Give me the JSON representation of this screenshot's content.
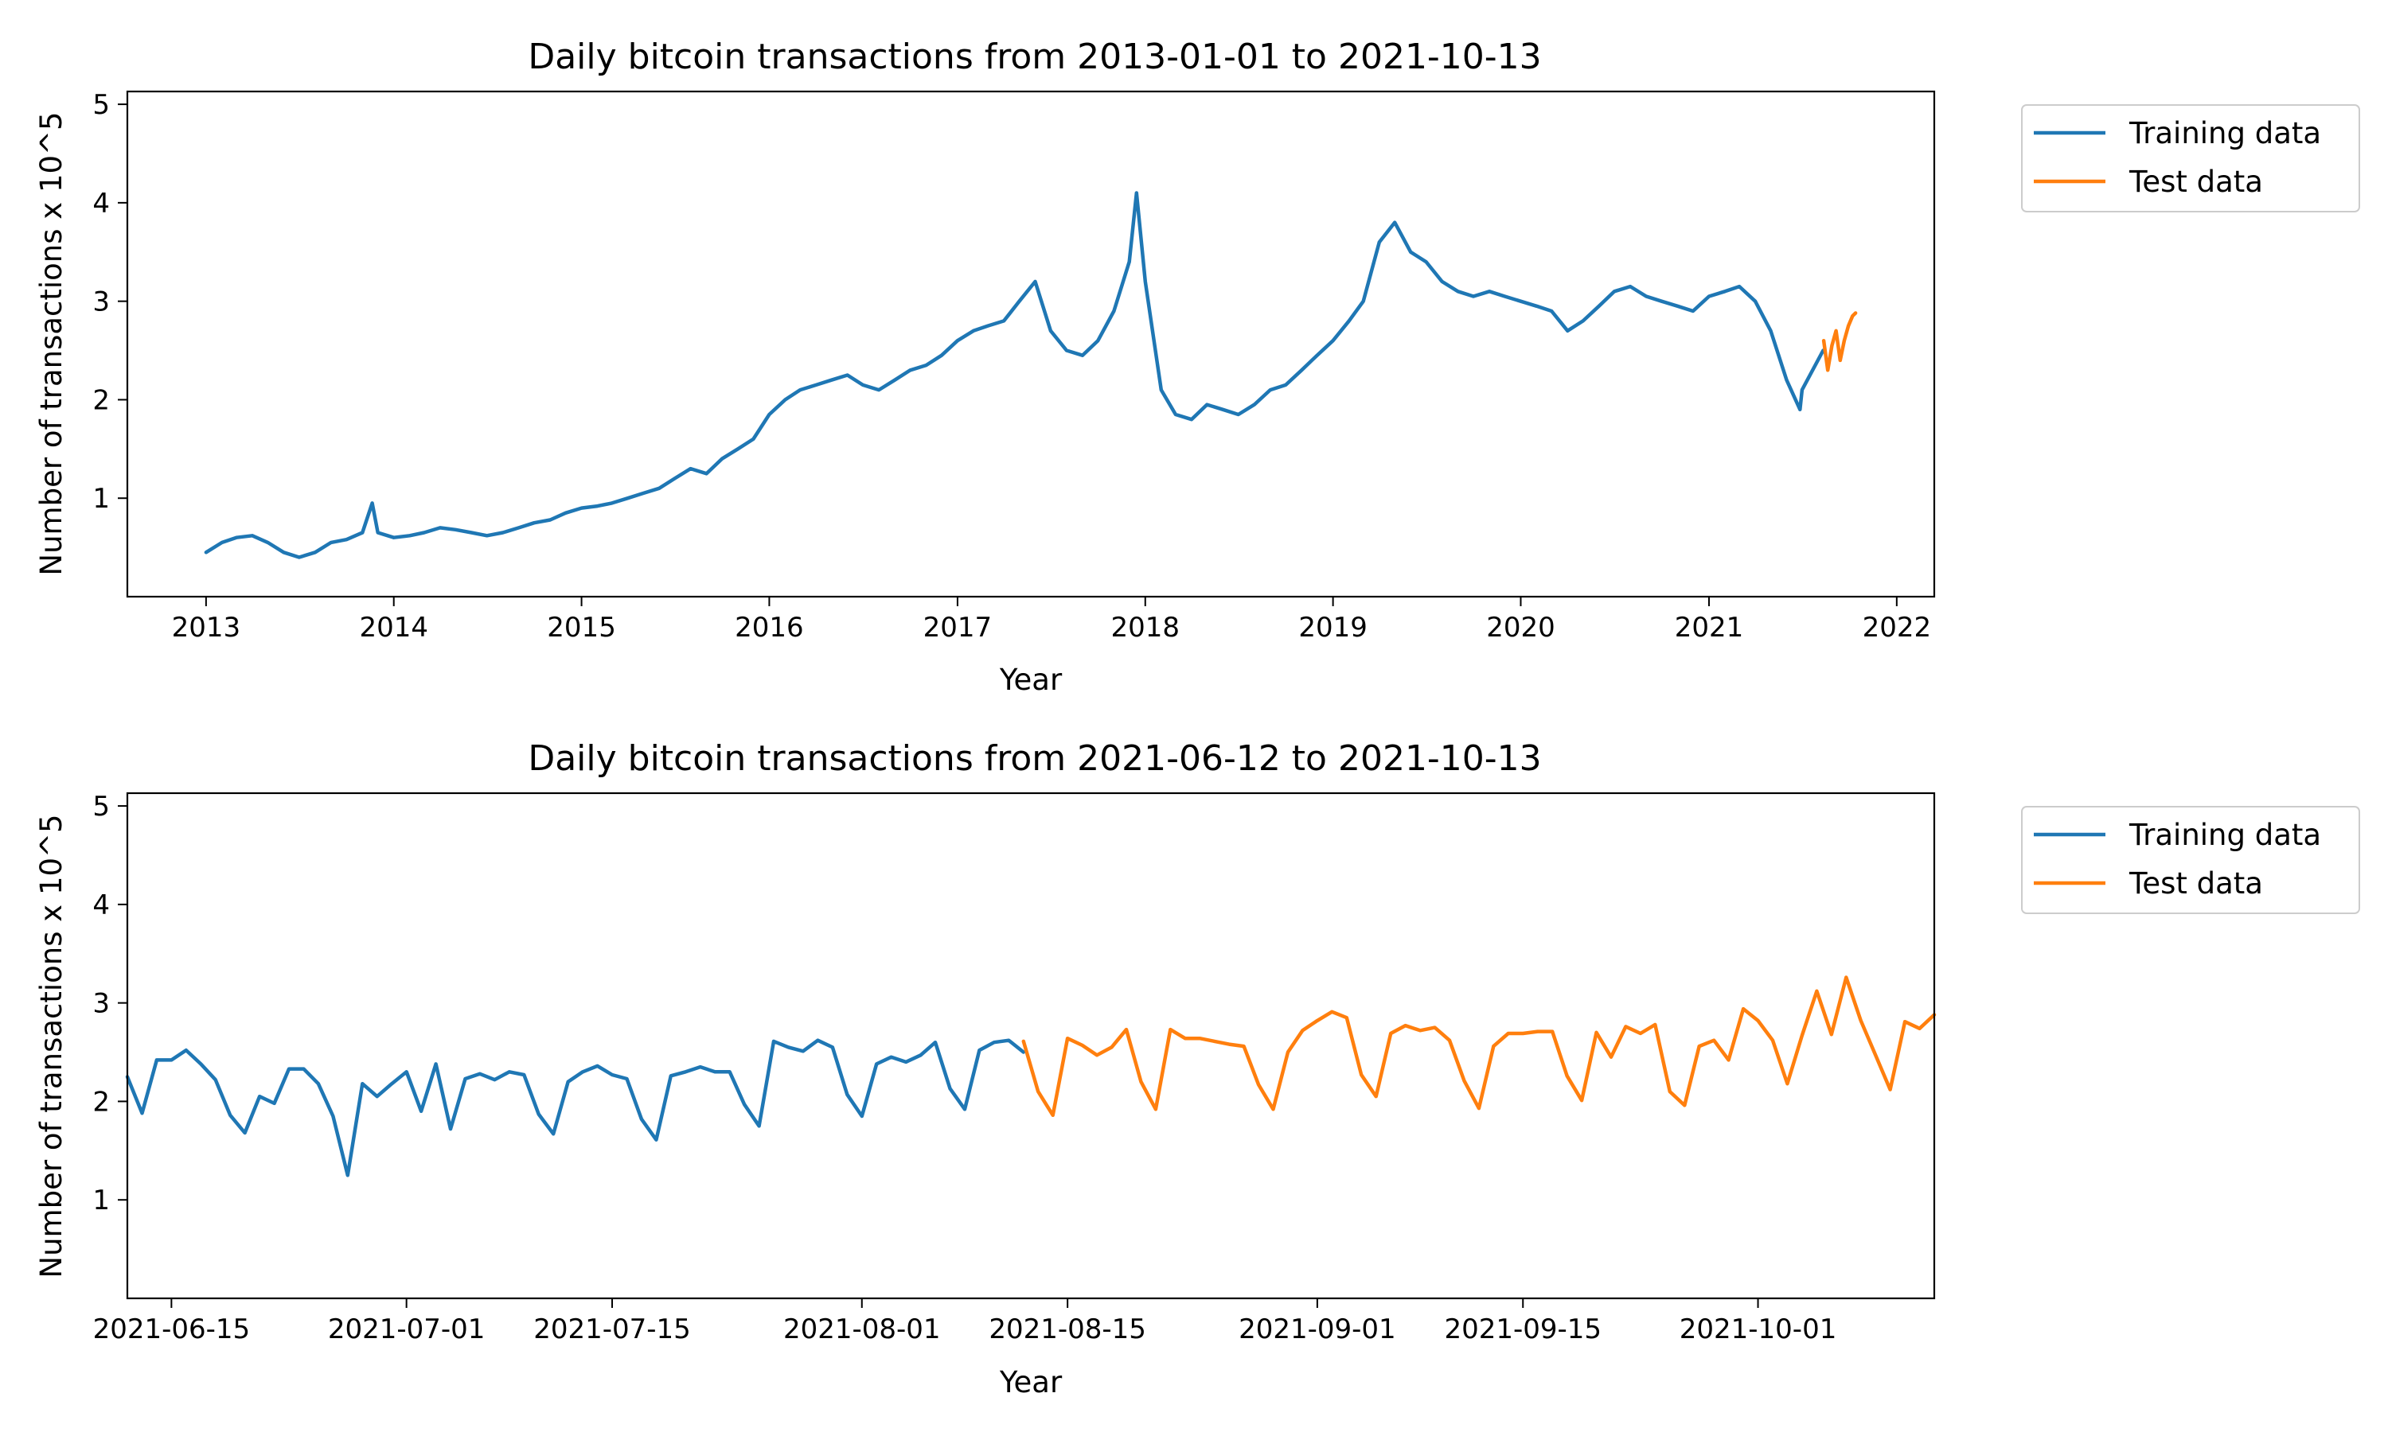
{
  "chart_data": [
    {
      "type": "line",
      "title": "Daily bitcoin transactions from 2013-01-01 to 2021-10-13",
      "xlabel": "Year",
      "ylabel": "Number of transactions x 10^5",
      "x_ticks": [
        "2013",
        "2014",
        "2015",
        "2016",
        "2017",
        "2018",
        "2019",
        "2020",
        "2021",
        "2022"
      ],
      "y_ticks": [
        "1",
        "2",
        "3",
        "4",
        "5"
      ],
      "xlim": [
        "2012-08-01",
        "2022-03-15"
      ],
      "ylim": [
        0.0,
        5.13
      ],
      "grid": false,
      "legend_position": "outside-right-top",
      "series": [
        {
          "name": "Training data",
          "color": "#1f77b4",
          "x": [
            "2013-01-01",
            "2013-02-01",
            "2013-03-01",
            "2013-04-01",
            "2013-05-01",
            "2013-06-01",
            "2013-07-01",
            "2013-08-01",
            "2013-09-01",
            "2013-10-01",
            "2013-11-01",
            "2013-11-20",
            "2013-12-01",
            "2014-01-01",
            "2014-02-01",
            "2014-03-01",
            "2014-04-01",
            "2014-05-01",
            "2014-06-01",
            "2014-07-01",
            "2014-08-01",
            "2014-09-01",
            "2014-10-01",
            "2014-11-01",
            "2014-12-01",
            "2015-01-01",
            "2015-02-01",
            "2015-03-01",
            "2015-04-01",
            "2015-05-01",
            "2015-06-01",
            "2015-07-01",
            "2015-08-01",
            "2015-09-01",
            "2015-10-01",
            "2015-11-01",
            "2015-12-01",
            "2016-01-01",
            "2016-02-01",
            "2016-03-01",
            "2016-04-01",
            "2016-05-01",
            "2016-06-01",
            "2016-07-01",
            "2016-08-01",
            "2016-09-01",
            "2016-10-01",
            "2016-11-01",
            "2016-12-01",
            "2017-01-01",
            "2017-02-01",
            "2017-03-01",
            "2017-04-01",
            "2017-05-01",
            "2017-06-01",
            "2017-07-01",
            "2017-08-01",
            "2017-09-01",
            "2017-10-01",
            "2017-11-01",
            "2017-12-01",
            "2017-12-15",
            "2018-01-01",
            "2018-02-01",
            "2018-03-01",
            "2018-04-01",
            "2018-05-01",
            "2018-06-01",
            "2018-07-01",
            "2018-08-01",
            "2018-09-01",
            "2018-10-01",
            "2018-11-01",
            "2018-12-01",
            "2019-01-01",
            "2019-02-01",
            "2019-03-01",
            "2019-04-01",
            "2019-05-01",
            "2019-06-01",
            "2019-07-01",
            "2019-08-01",
            "2019-09-01",
            "2019-10-01",
            "2019-11-01",
            "2019-12-01",
            "2020-01-01",
            "2020-02-01",
            "2020-03-01",
            "2020-04-01",
            "2020-05-01",
            "2020-06-01",
            "2020-07-01",
            "2020-08-01",
            "2020-09-01",
            "2020-10-01",
            "2020-11-01",
            "2020-12-01",
            "2021-01-01",
            "2021-02-01",
            "2021-03-01",
            "2021-04-01",
            "2021-05-01",
            "2021-06-01",
            "2021-06-27",
            "2021-07-01",
            "2021-08-11"
          ],
          "values": [
            0.45,
            0.55,
            0.6,
            0.62,
            0.55,
            0.45,
            0.4,
            0.45,
            0.55,
            0.58,
            0.65,
            0.95,
            0.65,
            0.6,
            0.62,
            0.65,
            0.7,
            0.68,
            0.65,
            0.62,
            0.65,
            0.7,
            0.75,
            0.78,
            0.85,
            0.9,
            0.92,
            0.95,
            1.0,
            1.05,
            1.1,
            1.2,
            1.3,
            1.25,
            1.4,
            1.5,
            1.6,
            1.85,
            2.0,
            2.1,
            2.15,
            2.2,
            2.25,
            2.15,
            2.1,
            2.2,
            2.3,
            2.35,
            2.45,
            2.6,
            2.7,
            2.75,
            2.8,
            3.0,
            3.2,
            2.7,
            2.5,
            2.45,
            2.6,
            2.9,
            3.4,
            4.1,
            3.2,
            2.1,
            1.85,
            1.8,
            1.95,
            1.9,
            1.85,
            1.95,
            2.1,
            2.15,
            2.3,
            2.45,
            2.6,
            2.8,
            3.0,
            3.6,
            3.8,
            3.5,
            3.4,
            3.2,
            3.1,
            3.05,
            3.1,
            3.05,
            3.0,
            2.95,
            2.9,
            2.7,
            2.8,
            2.95,
            3.1,
            3.15,
            3.05,
            3.0,
            2.95,
            2.9,
            3.05,
            3.1,
            3.15,
            3.0,
            2.7,
            2.2,
            1.9,
            2.1,
            2.5
          ]
        },
        {
          "name": "Test data",
          "color": "#ff7f0e",
          "x": [
            "2021-08-12",
            "2021-08-20",
            "2021-08-28",
            "2021-09-05",
            "2021-09-13",
            "2021-09-21",
            "2021-09-29",
            "2021-10-07",
            "2021-10-13"
          ],
          "values": [
            2.6,
            2.3,
            2.55,
            2.7,
            2.4,
            2.6,
            2.75,
            2.85,
            2.88
          ]
        }
      ]
    },
    {
      "type": "line",
      "title": "Daily bitcoin transactions from 2021-06-12 to 2021-10-13",
      "xlabel": "Year",
      "ylabel": "Number of transactions x 10^5",
      "x_ticks": [
        "2021-06-15",
        "2021-07-01",
        "2021-07-15",
        "2021-08-01",
        "2021-08-15",
        "2021-09-01",
        "2021-09-15",
        "2021-10-01"
      ],
      "y_ticks": [
        "1",
        "2",
        "3",
        "4",
        "5"
      ],
      "xlim": [
        "2021-06-12",
        "2021-10-13"
      ],
      "ylim": [
        0.0,
        5.13
      ],
      "grid": false,
      "legend_position": "outside-right-top",
      "series": [
        {
          "name": "Training data",
          "color": "#1f77b4",
          "x_start": "2021-06-12",
          "values": [
            2.25,
            1.88,
            2.42,
            2.42,
            2.52,
            2.38,
            2.22,
            1.86,
            1.68,
            2.05,
            1.98,
            2.33,
            2.33,
            2.18,
            1.85,
            1.25,
            2.18,
            2.05,
            2.18,
            2.3,
            1.9,
            2.38,
            1.72,
            2.23,
            2.28,
            2.22,
            2.3,
            2.27,
            1.87,
            1.67,
            2.2,
            2.3,
            2.36,
            2.27,
            2.23,
            1.82,
            1.61,
            2.26,
            2.3,
            2.35,
            2.3,
            2.3,
            1.97,
            1.75,
            2.61,
            2.55,
            2.51,
            2.62,
            2.55,
            2.07,
            1.85,
            2.38,
            2.45,
            2.4,
            2.47,
            2.6,
            2.13,
            1.92,
            2.52,
            2.6,
            2.62,
            2.5
          ]
        },
        {
          "name": "Test data",
          "color": "#ff7f0e",
          "x_start": "2021-08-12",
          "values": [
            2.61,
            2.1,
            1.86,
            2.64,
            2.57,
            2.47,
            2.55,
            2.73,
            2.2,
            1.92,
            2.73,
            2.64,
            2.64,
            2.61,
            2.58,
            2.56,
            2.17,
            1.92,
            2.5,
            2.72,
            2.82,
            2.91,
            2.85,
            2.27,
            2.05,
            2.69,
            2.77,
            2.72,
            2.75,
            2.62,
            2.21,
            1.93,
            2.56,
            2.69,
            2.69,
            2.71,
            2.71,
            2.26,
            2.01,
            2.7,
            2.45,
            2.76,
            2.69,
            2.78,
            2.1,
            1.96,
            2.56,
            2.62,
            2.42,
            2.94,
            2.82,
            2.62,
            2.18,
            2.67,
            3.12,
            2.68,
            3.26,
            2.82,
            2.47,
            2.12,
            2.81,
            2.74,
            2.88
          ]
        }
      ]
    }
  ]
}
